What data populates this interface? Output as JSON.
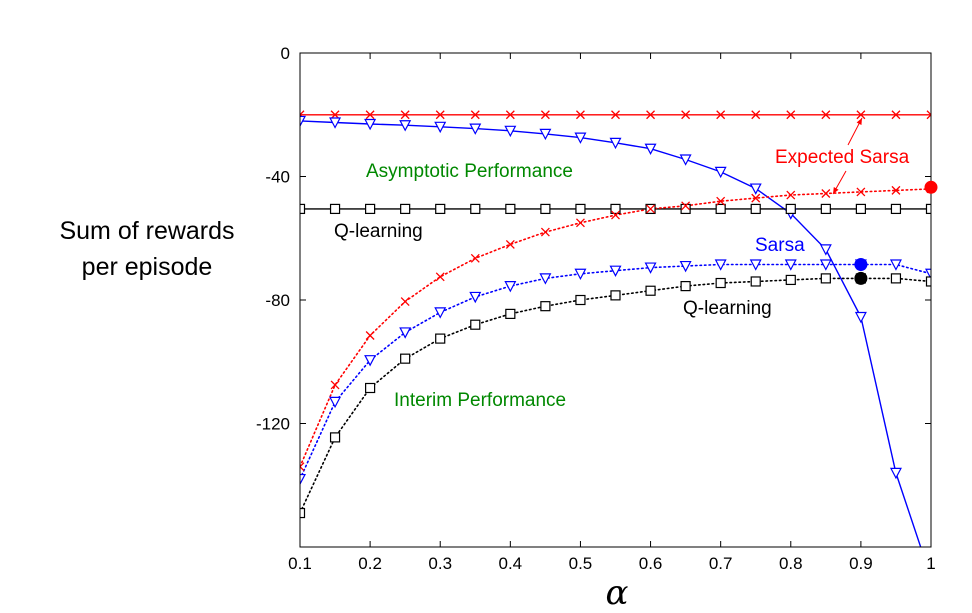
{
  "chart_data": {
    "type": "line",
    "title": "",
    "xlabel": "α",
    "ylabel_lines": [
      "Sum of rewards",
      "per episode"
    ],
    "xlim": [
      0.1,
      1.0
    ],
    "ylim": [
      -160,
      0
    ],
    "xticks": [
      0.1,
      0.2,
      0.3,
      0.4,
      0.5,
      0.6,
      0.7,
      0.8,
      0.9,
      1.0
    ],
    "xtick_labels": [
      "0.1",
      "0.2",
      "0.3",
      "0.4",
      "0.5",
      "0.6",
      "0.7",
      "0.8",
      "0.9",
      "1"
    ],
    "yticks": [
      0,
      -40,
      -80,
      -120
    ],
    "ytick_labels": [
      "0",
      "-40",
      "-80",
      "-120"
    ],
    "grid": false,
    "x": [
      0.1,
      0.15,
      0.2,
      0.25,
      0.3,
      0.35,
      0.4,
      0.45,
      0.5,
      0.55,
      0.6,
      0.65,
      0.7,
      0.75,
      0.8,
      0.85,
      0.9,
      0.95,
      1.0
    ],
    "series": [
      {
        "key": "esarsa_asym",
        "style": "solid",
        "marker": "x",
        "color": "#ff0000",
        "values": [
          -20,
          -20,
          -20,
          -20,
          -20,
          -20,
          -20,
          -20,
          -20,
          -20,
          -20,
          -20,
          -20,
          -20,
          -20,
          -20,
          -20,
          -20,
          -20
        ]
      },
      {
        "key": "sarsa_asym",
        "style": "solid",
        "marker": "triangle-down",
        "color": "#0000ff",
        "values": [
          -22,
          -22.5,
          -23,
          -23.4,
          -23.9,
          -24.5,
          -25.2,
          -26.2,
          -27.4,
          -29.1,
          -31,
          -34.5,
          -38.5,
          -43.9,
          -52,
          -63.6,
          -85.5,
          -136,
          -170
        ]
      },
      {
        "key": "qlearning_asym",
        "style": "solid",
        "marker": "square",
        "color": "#000000",
        "values": [
          -50.5,
          -50.5,
          -50.5,
          -50.5,
          -50.5,
          -50.5,
          -50.5,
          -50.5,
          -50.5,
          -50.5,
          -50.5,
          -50.5,
          -50.5,
          -50.5,
          -50.5,
          -50.5,
          -50.5,
          -50.5,
          -50.5
        ]
      },
      {
        "key": "esarsa_interim",
        "style": "dotted",
        "marker": "x",
        "color": "#ff0000",
        "values": [
          -134,
          -107.5,
          -91.5,
          -80.5,
          -72.5,
          -66.5,
          -62,
          -58,
          -55,
          -52.5,
          -50.5,
          -49.5,
          -48,
          -47,
          -46,
          -45.5,
          -45,
          -44.5,
          -44
        ]
      },
      {
        "key": "sarsa_interim",
        "style": "dotted",
        "marker": "triangle-down",
        "color": "#0000ff",
        "values": [
          -138,
          -113,
          -99.5,
          -90.5,
          -84,
          -79,
          -75.5,
          -73,
          -71.5,
          -70.5,
          -69.5,
          -69,
          -68.5,
          -68.5,
          -68.5,
          -68.5,
          -68.5,
          -68.5,
          -71.5
        ]
      },
      {
        "key": "qlearning_interim",
        "style": "dotted",
        "marker": "square",
        "color": "#000000",
        "values": [
          -149,
          -124.5,
          -108.5,
          -99,
          -92.5,
          -88,
          -84.5,
          -82,
          -80,
          -78.5,
          -77,
          -75.5,
          -74.5,
          -74,
          -73.5,
          -73,
          -73,
          -73,
          -74
        ]
      }
    ],
    "highlight_points": [
      {
        "x": 1.0,
        "y": -43.5,
        "color": "#ff0000"
      },
      {
        "x": 0.9,
        "y": -68.5,
        "color": "#0000ff"
      },
      {
        "x": 0.9,
        "y": -73,
        "color": "#000000"
      }
    ],
    "annotations": [
      {
        "key": "asymptotic",
        "text": "Asymptotic Performance",
        "color": "#008800"
      },
      {
        "key": "interim",
        "text": "Interim Performance",
        "color": "#008800"
      },
      {
        "key": "expected_sarsa",
        "text": "Expected Sarsa",
        "color": "#ff0000"
      },
      {
        "key": "sarsa",
        "text": "Sarsa",
        "color": "#0000ff"
      },
      {
        "key": "qlearning_top",
        "text": "Q-learning",
        "color": "#000000"
      },
      {
        "key": "qlearning_bottom",
        "text": "Q-learning",
        "color": "#000000"
      }
    ]
  }
}
